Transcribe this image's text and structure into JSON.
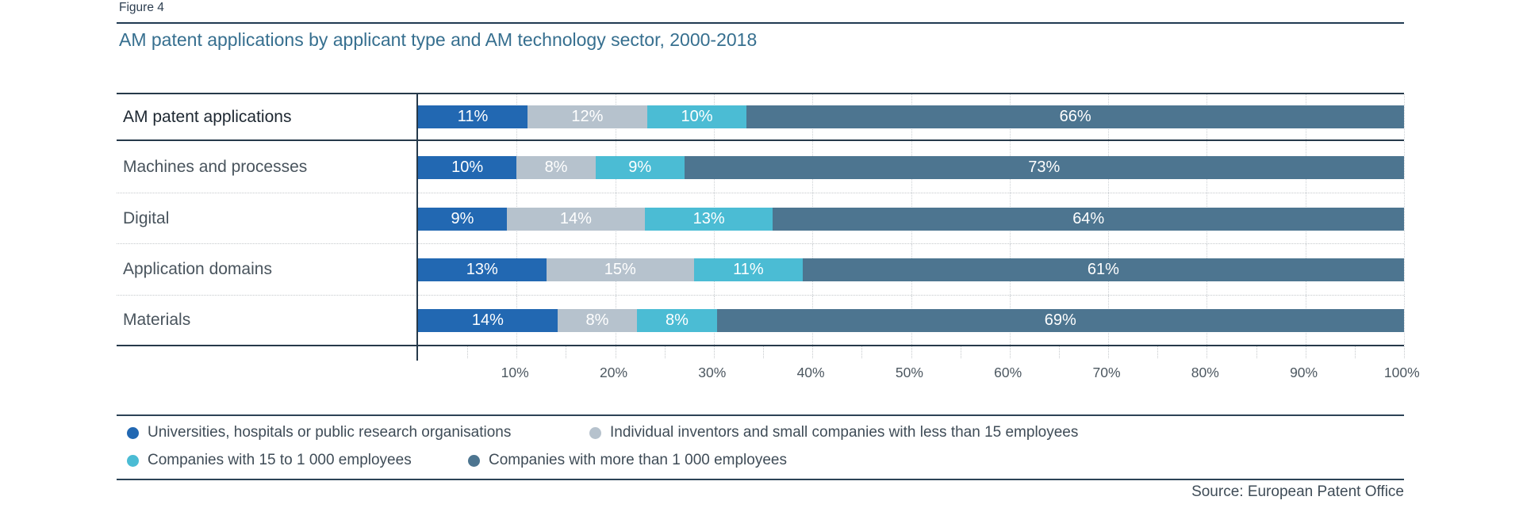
{
  "figure_label": "Figure 4",
  "title": "AM patent applications by applicant type and AM technology sector, 2000-2018",
  "source": "Source: European Patent Office",
  "colors": {
    "series_university_blue": "#2268b2",
    "series_individual_gray": "#b6c2cd",
    "series_mid_company_teal": "#4bbcd4",
    "series_large_company_slate": "#4d7590",
    "title_text": "#366f8f",
    "rule_dark": "#26394a",
    "bar_value_text": "#ffffff"
  },
  "chart_data": {
    "type": "bar",
    "orientation": "horizontal",
    "stacked": true,
    "unit": "%",
    "title": "AM patent applications by applicant type and AM technology sector, 2000-2018",
    "categories": [
      "AM patent applications",
      "Machines and processes",
      "Digital",
      "Application domains",
      "Materials"
    ],
    "series": [
      {
        "name": "Universities, hospitals or public research organisations",
        "color": "#2268b2",
        "values": [
          11,
          10,
          9,
          13,
          14
        ]
      },
      {
        "name": "Individual inventors and small companies with less than 15 employees",
        "color": "#b6c2cd",
        "values": [
          12,
          8,
          14,
          15,
          8
        ]
      },
      {
        "name": "Companies with 15 to 1 000 employees",
        "color": "#4bbcd4",
        "values": [
          10,
          9,
          13,
          11,
          8
        ]
      },
      {
        "name": "Companies with more than 1 000 employees",
        "color": "#4d7590",
        "values": [
          66,
          73,
          64,
          61,
          69
        ]
      }
    ],
    "x_axis": {
      "min": 0,
      "max": 100,
      "tick_labels": [
        "10%",
        "20%",
        "30%",
        "40%",
        "50%",
        "60%",
        "70%",
        "80%",
        "90%",
        "100%"
      ],
      "major_gridline_step": 10,
      "minor_tick_step": 5,
      "gridlines": "dotted"
    },
    "value_labels": "inside segments, white, suffixed with %",
    "legend_position": "bottom"
  }
}
